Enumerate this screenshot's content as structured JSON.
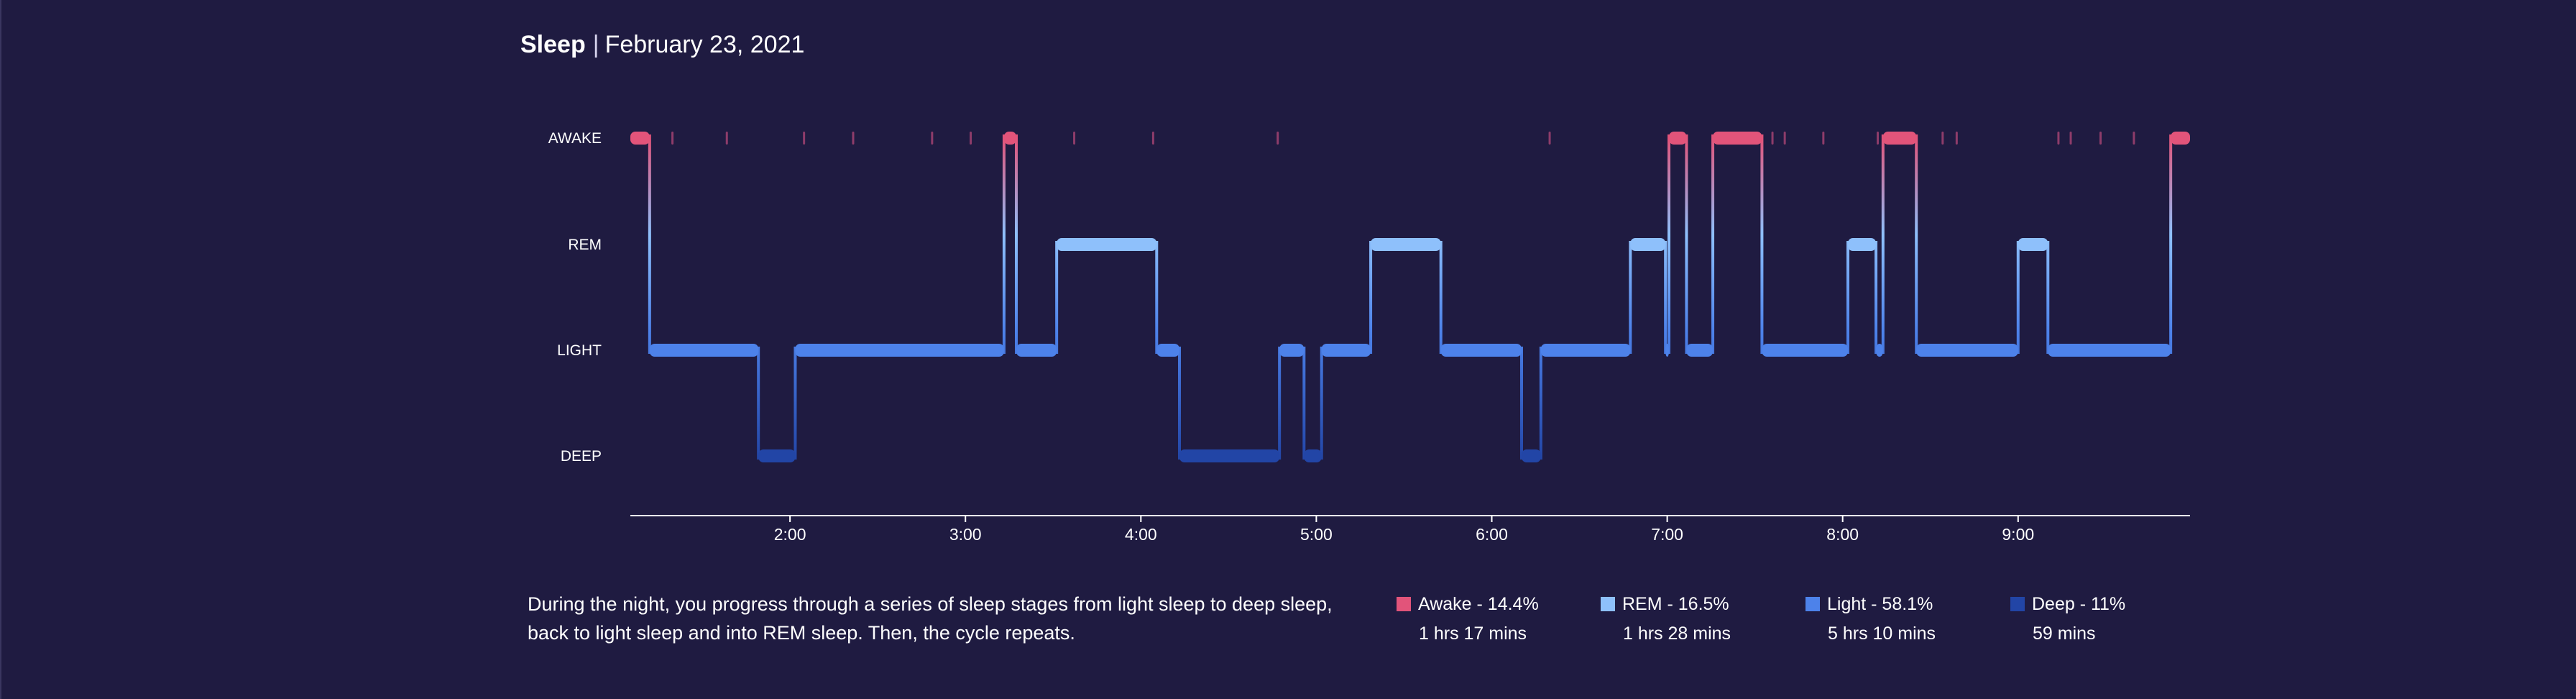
{
  "header": {
    "title": "Sleep",
    "date": "February 23, 2021"
  },
  "description": "During the night, you progress through a series of sleep stages from light sleep to deep sleep, back to light sleep and into REM sleep. Then, the cycle repeats.",
  "legend": [
    {
      "name": "Awake - 14.4%",
      "duration": "1 hrs 17 mins",
      "color": "#e2547a"
    },
    {
      "name": "REM - 16.5%",
      "duration": "1 hrs 28 mins",
      "color": "#8ec0fb"
    },
    {
      "name": "Light - 58.1%",
      "duration": "5 hrs 10 mins",
      "color": "#4d82ea"
    },
    {
      "name": "Deep - 11%",
      "duration": "59 mins",
      "color": "#2245a6"
    }
  ],
  "chart_data": {
    "type": "line",
    "subtype": "hypnogram",
    "stages": [
      "AWAKE",
      "REM",
      "LIGHT",
      "DEEP"
    ],
    "x_ticks": [
      "2:00",
      "3:00",
      "4:00",
      "5:00",
      "6:00",
      "7:00",
      "8:00",
      "9:00"
    ],
    "x_range_hours": [
      1.09,
      9.98
    ],
    "colors": {
      "AWAKE": "#e2547a",
      "REM": "#8ec0fb",
      "LIGHT": "#4d82ea",
      "DEEP": "#2245a6",
      "awake_tick": "#8e3c6a"
    },
    "segments": [
      {
        "stage": "AWAKE",
        "start": 1.09,
        "end": 1.2
      },
      {
        "stage": "LIGHT",
        "start": 1.2,
        "end": 1.82
      },
      {
        "stage": "DEEP",
        "start": 1.82,
        "end": 2.03
      },
      {
        "stage": "LIGHT",
        "start": 2.03,
        "end": 3.22
      },
      {
        "stage": "AWAKE",
        "start": 3.22,
        "end": 3.29
      },
      {
        "stage": "LIGHT",
        "start": 3.29,
        "end": 3.52
      },
      {
        "stage": "REM",
        "start": 3.52,
        "end": 4.09
      },
      {
        "stage": "LIGHT",
        "start": 4.09,
        "end": 4.22
      },
      {
        "stage": "DEEP",
        "start": 4.22,
        "end": 4.79
      },
      {
        "stage": "LIGHT",
        "start": 4.79,
        "end": 4.93
      },
      {
        "stage": "DEEP",
        "start": 4.93,
        "end": 5.03
      },
      {
        "stage": "LIGHT",
        "start": 5.03,
        "end": 5.31
      },
      {
        "stage": "REM",
        "start": 5.31,
        "end": 5.71
      },
      {
        "stage": "LIGHT",
        "start": 5.71,
        "end": 6.17
      },
      {
        "stage": "DEEP",
        "start": 6.17,
        "end": 6.28
      },
      {
        "stage": "LIGHT",
        "start": 6.28,
        "end": 6.79
      },
      {
        "stage": "REM",
        "start": 6.79,
        "end": 6.99
      },
      {
        "stage": "LIGHT",
        "start": 6.99,
        "end": 7.01
      },
      {
        "stage": "AWAKE",
        "start": 7.01,
        "end": 7.11
      },
      {
        "stage": "LIGHT",
        "start": 7.11,
        "end": 7.26
      },
      {
        "stage": "AWAKE",
        "start": 7.26,
        "end": 7.54
      },
      {
        "stage": "LIGHT",
        "start": 7.54,
        "end": 8.03
      },
      {
        "stage": "REM",
        "start": 8.03,
        "end": 8.19
      },
      {
        "stage": "LIGHT",
        "start": 8.19,
        "end": 8.23
      },
      {
        "stage": "AWAKE",
        "start": 8.23,
        "end": 8.42
      },
      {
        "stage": "LIGHT",
        "start": 8.42,
        "end": 9.0
      },
      {
        "stage": "REM",
        "start": 9.0,
        "end": 9.17
      },
      {
        "stage": "LIGHT",
        "start": 9.17,
        "end": 9.87
      },
      {
        "stage": "AWAKE",
        "start": 9.87,
        "end": 9.98
      }
    ],
    "brief_awakenings": [
      1.33,
      1.64,
      2.08,
      2.36,
      2.81,
      3.03,
      3.62,
      4.07,
      4.78,
      6.33,
      7.6,
      7.67,
      7.89,
      8.2,
      8.57,
      8.65,
      9.23,
      9.3,
      9.47,
      9.66
    ]
  }
}
